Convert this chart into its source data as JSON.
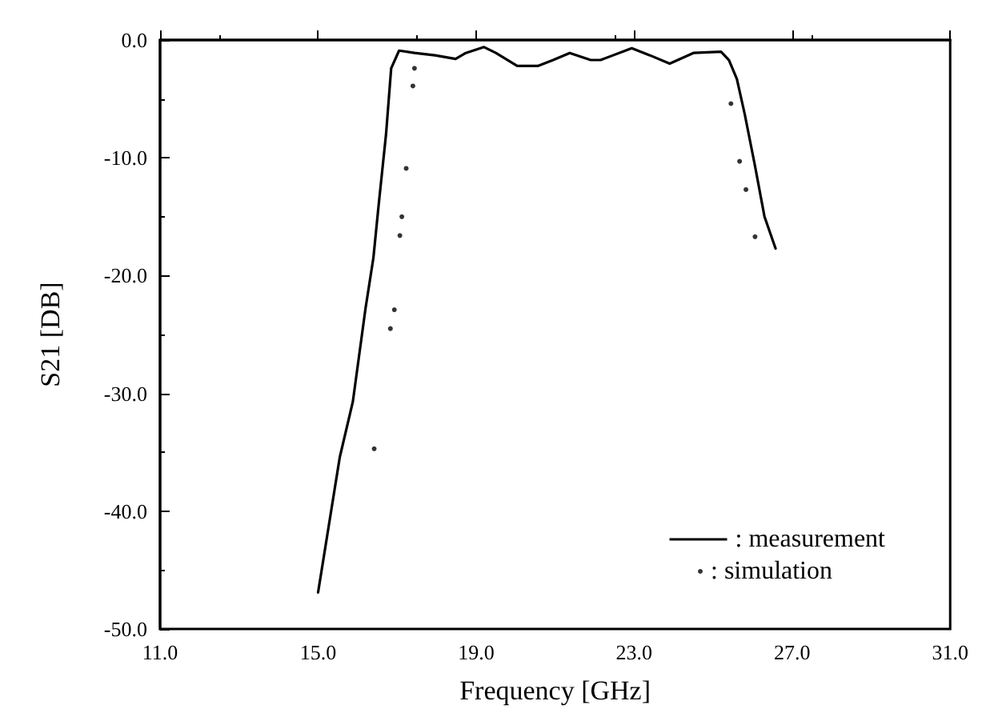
{
  "chart_data": {
    "type": "line",
    "xlabel": "Frequency [GHz]",
    "ylabel": "S21 [DB]",
    "xlim": [
      11,
      31
    ],
    "ylim": [
      -50,
      0
    ],
    "xticks": [
      {
        "value": 11,
        "label": "11.0"
      },
      {
        "value": 15,
        "label": "15.0"
      },
      {
        "value": 19,
        "label": "19.0"
      },
      {
        "value": 23,
        "label": "23.0"
      },
      {
        "value": 27,
        "label": "27.0"
      },
      {
        "value": 31,
        "label": "31.0"
      }
    ],
    "yticks": [
      {
        "value": -50,
        "label": "-50.0"
      },
      {
        "value": -40,
        "label": "-40.0"
      },
      {
        "value": -30,
        "label": "-30.0"
      },
      {
        "value": -20,
        "label": "-20.0"
      },
      {
        "value": -10,
        "label": "-10.0"
      },
      {
        "value": 0,
        "label": "0.0"
      }
    ],
    "grid": false,
    "legend": "bottom right",
    "series": [
      {
        "name": ": measurement",
        "color": "#000000",
        "line_style": "solid",
        "marker": "none",
        "x": [
          15.0,
          15.55,
          15.88,
          16.2,
          16.4,
          16.53,
          16.72,
          16.85,
          17.05,
          17.44,
          17.96,
          18.48,
          18.74,
          19.2,
          19.5,
          20.04,
          20.56,
          20.95,
          21.37,
          21.9,
          22.15,
          22.94,
          23.4,
          23.9,
          24.5,
          25.2,
          25.4,
          25.6,
          25.8,
          26.06,
          26.3,
          26.58
        ],
        "values": [
          -46.9,
          -35.4,
          -30.7,
          -22.8,
          -18.5,
          -14.1,
          -8.0,
          -2.4,
          -0.9,
          -1.1,
          -1.3,
          -1.6,
          -1.1,
          -0.6,
          -1.1,
          -2.2,
          -2.2,
          -1.7,
          -1.1,
          -1.7,
          -1.7,
          -0.7,
          -1.3,
          -2.0,
          -1.1,
          -1.0,
          -1.7,
          -3.3,
          -6.3,
          -10.7,
          -15.0,
          -17.7
        ]
      },
      {
        "name": ": simulation",
        "type": "scatter",
        "color": "#000000",
        "marker": "circle",
        "x": [
          16.42,
          16.83,
          16.93,
          17.07,
          17.12,
          17.23,
          17.4,
          17.44,
          25.45,
          25.67,
          25.83,
          26.06
        ],
        "values": [
          -34.7,
          -24.5,
          -22.9,
          -16.6,
          -15.0,
          -10.9,
          -3.9,
          -2.4,
          -5.4,
          -10.3,
          -12.7,
          -16.7
        ]
      }
    ]
  }
}
